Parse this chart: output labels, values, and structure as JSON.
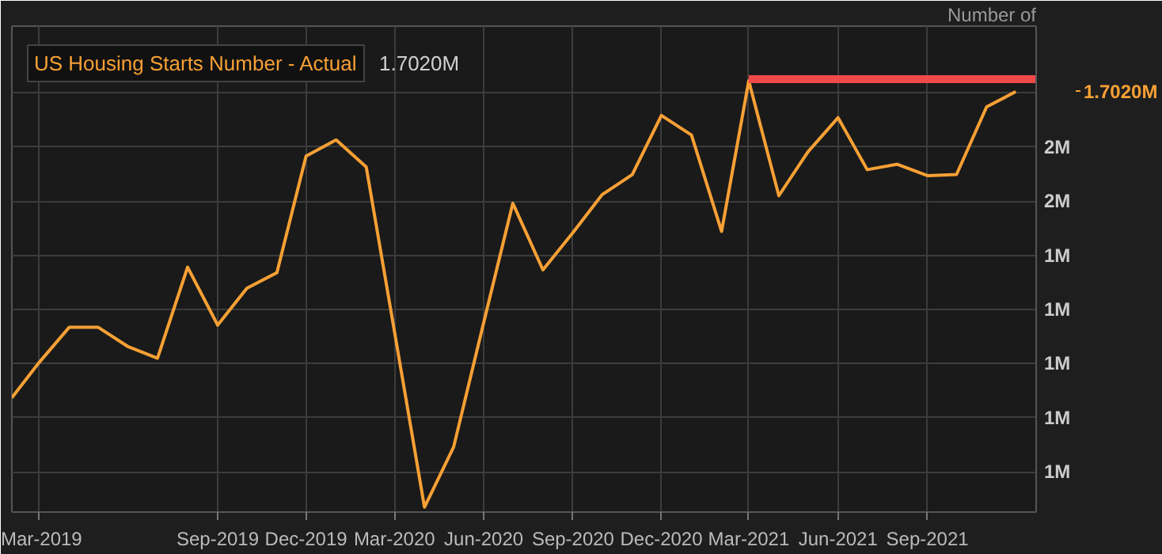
{
  "chart_data": {
    "type": "line",
    "ylabel": "Number of",
    "x": [
      "2019-02",
      "2019-03",
      "2019-04",
      "2019-05",
      "2019-06",
      "2019-07",
      "2019-08",
      "2019-09",
      "2019-10",
      "2019-11",
      "2019-12",
      "2020-01",
      "2020-02",
      "2020-03",
      "2020-04",
      "2020-05",
      "2020-06",
      "2020-07",
      "2020-08",
      "2020-09",
      "2020-10",
      "2020-11",
      "2020-12",
      "2021-01",
      "2021-02",
      "2021-03",
      "2021-04",
      "2021-05",
      "2021-06",
      "2021-07",
      "2021-08",
      "2021-09",
      "2021-10",
      "2021-11",
      "2021-12"
    ],
    "series": [
      {
        "name": "US Housing Starts Number - Actual",
        "color": "#f7a035",
        "values": [
          1.137,
          1.202,
          1.267,
          1.267,
          1.231,
          1.21,
          1.378,
          1.271,
          1.339,
          1.368,
          1.583,
          1.613,
          1.563,
          1.26,
          0.935,
          1.046,
          1.276,
          1.496,
          1.373,
          1.442,
          1.512,
          1.549,
          1.658,
          1.622,
          1.444,
          1.722,
          1.51,
          1.591,
          1.654,
          1.558,
          1.568,
          1.547,
          1.549,
          1.674,
          1.702
        ]
      },
      {
        "type": "line",
        "color": "#f04a4a",
        "x": [
          "2021-03",
          "2021-12-22"
        ],
        "values": [
          1.725,
          1.725
        ]
      }
    ],
    "annotations": [
      "1.7020M",
      "1.7020M"
    ],
    "xlim": [
      "2019-02",
      "2021-12-22"
    ],
    "xticks": [
      {
        "value": "2019-03",
        "label": "Mar-2019"
      },
      {
        "value": "2019-09",
        "label": "Sep-2019"
      },
      {
        "value": "2019-12",
        "label": "Dec-2019"
      },
      {
        "value": "2020-03",
        "label": "Mar-2020"
      },
      {
        "value": "2020-06",
        "label": "Jun-2020"
      },
      {
        "value": "2020-09",
        "label": "Sep-2020"
      },
      {
        "value": "2020-12",
        "label": "Dec-2020"
      },
      {
        "value": "2021-03",
        "label": "Mar-2021"
      },
      {
        "value": "2021-06",
        "label": "Jun-2021"
      },
      {
        "value": "2021-09",
        "label": "Sep-2021"
      }
    ],
    "ylim": [
      0.926,
      1.823
    ],
    "yticks": [
      {
        "value": 1.0,
        "label": "1M"
      },
      {
        "value": 1.1,
        "label": "1M"
      },
      {
        "value": 1.2,
        "label": "1M"
      },
      {
        "value": 1.3,
        "label": "1M"
      },
      {
        "value": 1.4,
        "label": "1M"
      },
      {
        "value": 1.5,
        "label": "2M"
      },
      {
        "value": 1.6,
        "label": "2M"
      },
      {
        "value": 1.7,
        "label": null
      }
    ],
    "grid": true,
    "legend": "top left",
    "marker": "none",
    "line_style": "solid"
  }
}
